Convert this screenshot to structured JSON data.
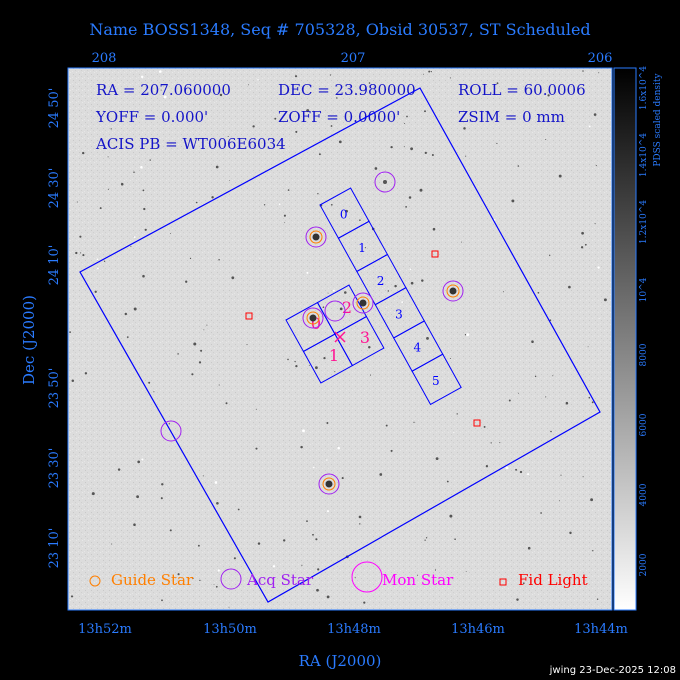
{
  "title": "Name BOSS1348, Seq # 705328, Obsid 30537, ST Scheduled",
  "info": {
    "line1": [
      "RA = 207.060000",
      "DEC = 23.980000",
      "ROLL = 60.0006"
    ],
    "line2": [
      "YOFF = 0.000'",
      "ZOFF = 0.0000'",
      "ZSIM = 0 mm"
    ],
    "line3": "ACIS PB = WT006E6034"
  },
  "axes": {
    "xlabel": "RA (J2000)",
    "ylabel": "Dec (J2000)",
    "top_ticks": [
      "208",
      "207",
      "206"
    ],
    "bottom_ticks": [
      "13h52m",
      "13h50m",
      "13h48m",
      "13h46m",
      "13h44m"
    ],
    "left_ticks": [
      "24 50'",
      "24 30'",
      "24 10'",
      "23 50'",
      "23 30'",
      "23 10'"
    ]
  },
  "colorbar": {
    "label": "PDSS scaled density",
    "ticks": [
      "2000",
      "4000",
      "6000",
      "8000",
      "10^4",
      "1.2x10^4",
      "1.4x10^4",
      "1.6x10^4"
    ]
  },
  "chips": {
    "i": [
      "0",
      "1",
      "2",
      "3"
    ],
    "s": [
      "0",
      "1",
      "2",
      "3",
      "4",
      "5"
    ]
  },
  "legend": [
    {
      "label": "Guide Star",
      "color": "#ff7f00"
    },
    {
      "label": "Acq Star",
      "color": "#a020f0"
    },
    {
      "label": "Mon Star",
      "color": "#ff00ff"
    },
    {
      "label": "Fid Light",
      "color": "#ff0000"
    }
  ],
  "footer": "jwing 23-Dec-2025 12:08",
  "colors": {
    "axis": "#2a7bff",
    "field": "#0000ff",
    "info": "#1414c8"
  }
}
